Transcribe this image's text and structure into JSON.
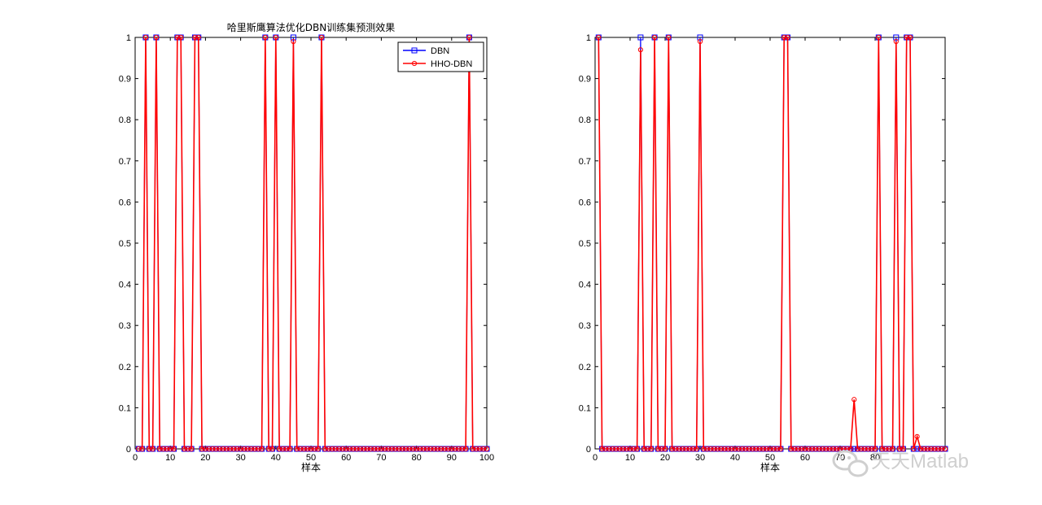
{
  "colors": {
    "dbn": "#0000ff",
    "hho": "#ff0000",
    "axis": "#000000",
    "background": "#ffffff"
  },
  "watermark": {
    "icon": "wechat-icon",
    "text": "天天Matlab"
  },
  "chart_data": [
    {
      "type": "line",
      "title": "哈里斯鹰算法优化DBN训练集预测效果",
      "xlabel": "样本",
      "ylabel": "",
      "xlim": [
        0,
        100
      ],
      "ylim": [
        0,
        1
      ],
      "xticks": [
        0,
        10,
        20,
        30,
        40,
        50,
        60,
        70,
        80,
        90,
        100
      ],
      "yticks": [
        0,
        0.1,
        0.2,
        0.3,
        0.4,
        0.5,
        0.6,
        0.7,
        0.8,
        0.9,
        1
      ],
      "grid": false,
      "legend": {
        "position": "top-right"
      },
      "x_range": [
        1,
        100
      ],
      "series": [
        {
          "name": "DBN",
          "color": "#0000ff",
          "marker": "square",
          "points_nonzero": [
            [
              3,
              1
            ],
            [
              6,
              1
            ],
            [
              12,
              1
            ],
            [
              13,
              1
            ],
            [
              17,
              1
            ],
            [
              18,
              1
            ],
            [
              37,
              1
            ],
            [
              40,
              1
            ],
            [
              45,
              1
            ],
            [
              53,
              1
            ],
            [
              95,
              1
            ]
          ]
        },
        {
          "name": "HHO-DBN",
          "color": "#ff0000",
          "marker": "circle",
          "points_nonzero": [
            [
              3,
              1
            ],
            [
              6,
              1
            ],
            [
              12,
              1
            ],
            [
              13,
              1
            ],
            [
              17,
              1
            ],
            [
              18,
              1
            ],
            [
              37,
              1
            ],
            [
              40,
              1
            ],
            [
              45,
              0.99
            ],
            [
              53,
              1
            ],
            [
              95,
              1
            ]
          ]
        }
      ]
    },
    {
      "type": "line",
      "title": "",
      "xlabel": "样本",
      "ylabel": "",
      "xlim": [
        0,
        100
      ],
      "ylim": [
        0,
        1
      ],
      "xticks": [
        0,
        10,
        20,
        30,
        40,
        50,
        60,
        70,
        80
      ],
      "yticks": [
        0,
        0.1,
        0.2,
        0.3,
        0.4,
        0.5,
        0.6,
        0.7,
        0.8,
        0.9,
        1
      ],
      "grid": false,
      "x_range": [
        1,
        100
      ],
      "series": [
        {
          "name": "DBN",
          "color": "#0000ff",
          "marker": "square",
          "points_nonzero": [
            [
              1,
              1
            ],
            [
              13,
              1
            ],
            [
              17,
              1
            ],
            [
              21,
              1
            ],
            [
              30,
              1
            ],
            [
              54,
              1
            ],
            [
              55,
              1
            ],
            [
              81,
              1
            ],
            [
              86,
              1
            ],
            [
              89,
              1
            ],
            [
              90,
              1
            ]
          ]
        },
        {
          "name": "HHO-DBN",
          "color": "#ff0000",
          "marker": "circle",
          "points_nonzero": [
            [
              1,
              1
            ],
            [
              13,
              0.97
            ],
            [
              17,
              1
            ],
            [
              21,
              1
            ],
            [
              30,
              0.99
            ],
            [
              54,
              1
            ],
            [
              55,
              1
            ],
            [
              74,
              0.12
            ],
            [
              81,
              1
            ],
            [
              86,
              0.99
            ],
            [
              89,
              1
            ],
            [
              90,
              1
            ],
            [
              92,
              0.03
            ]
          ]
        }
      ]
    }
  ]
}
